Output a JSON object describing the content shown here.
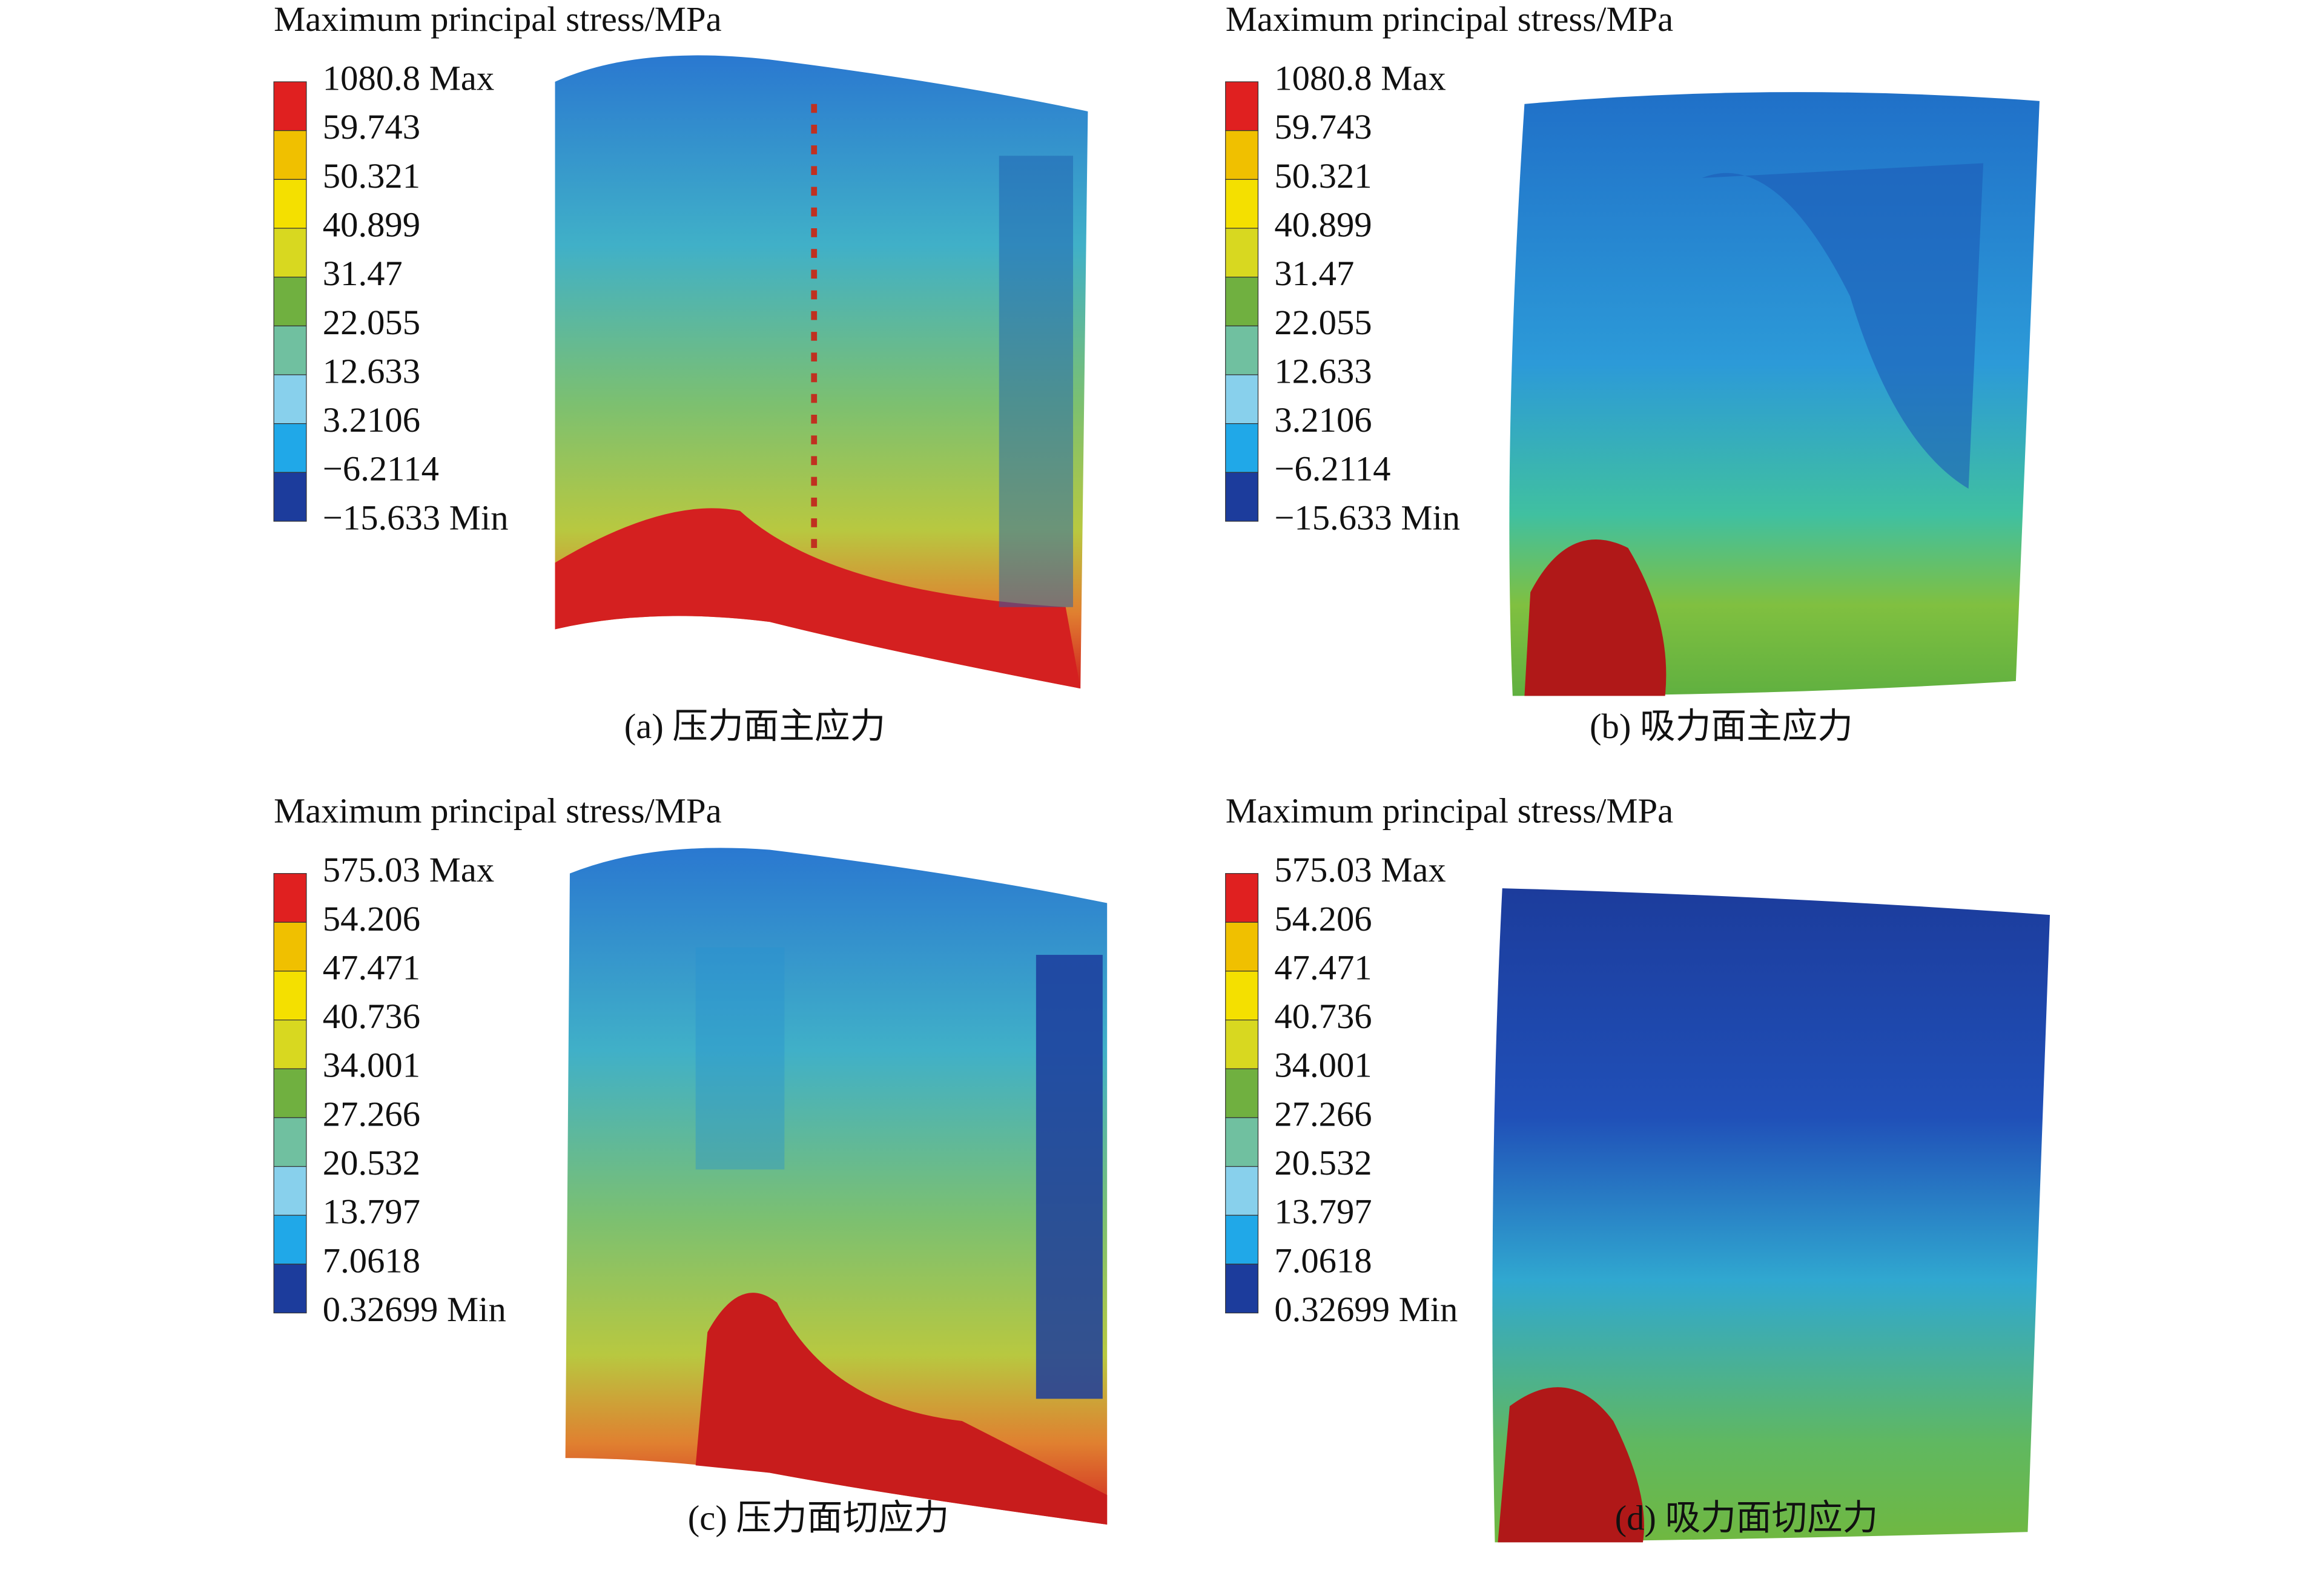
{
  "panels": [
    {
      "legend_title": "Maximum principal stress/MPa",
      "legend_labels": [
        "1080.8 Max",
        "59.743",
        "50.321",
        "40.899",
        "31.47",
        "22.055",
        "12.633",
        "3.2106",
        "−6.2114",
        "−15.633 Min"
      ],
      "caption": "(a) 压力面主应力"
    },
    {
      "legend_title": "Maximum principal stress/MPa",
      "legend_labels": [
        "1080.8 Max",
        "59.743",
        "50.321",
        "40.899",
        "31.47",
        "22.055",
        "12.633",
        "3.2106",
        "−6.2114",
        "−15.633 Min"
      ],
      "caption": "(b) 吸力面主应力"
    },
    {
      "legend_title": "Maximum principal stress/MPa",
      "legend_labels": [
        "575.03 Max",
        "54.206",
        "47.471",
        "40.736",
        "34.001",
        "27.266",
        "20.532",
        "13.797",
        "7.0618",
        "0.32699 Min"
      ],
      "caption": "(c) 压力面切应力"
    },
    {
      "legend_title": "Maximum principal stress/MPa",
      "legend_labels": [
        "575.03 Max",
        "54.206",
        "47.471",
        "40.736",
        "34.001",
        "27.266",
        "20.532",
        "13.797",
        "7.0618",
        "0.32699 Min"
      ],
      "caption": "(d) 吸力面切应力"
    }
  ]
}
